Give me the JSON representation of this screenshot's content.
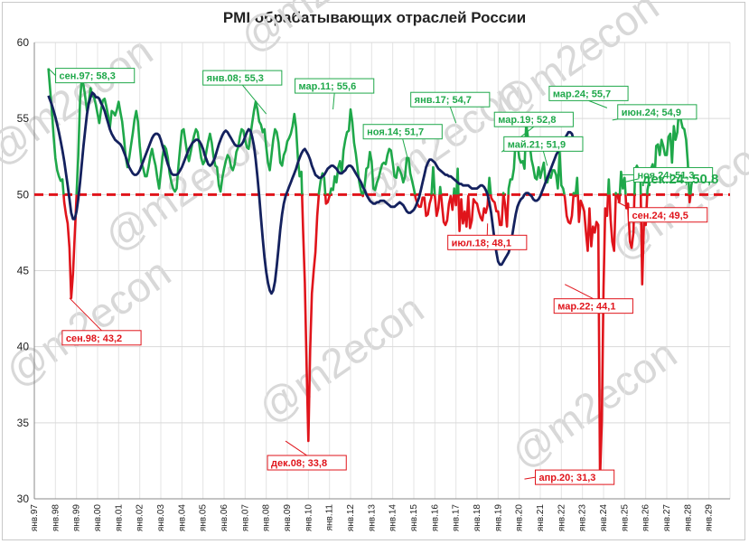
{
  "chart_data": {
    "type": "line",
    "title": "PMI обрабатывающих отраслей России",
    "watermark": "@m2econ",
    "xlim": [
      "янв.97",
      "янв.30"
    ],
    "ylim": [
      30,
      60
    ],
    "y_ticks": [
      30,
      35,
      40,
      45,
      50,
      55,
      60
    ],
    "x_tick_labels": [
      "янв.97",
      "янв.98",
      "янв.99",
      "янв.00",
      "янв.01",
      "янв.02",
      "янв.03",
      "янв.04",
      "янв.05",
      "янв.06",
      "янв.07",
      "янв.08",
      "янв.09",
      "янв.10",
      "янв.11",
      "янв.12",
      "янв.13",
      "янв.14",
      "янв.15",
      "янв.16",
      "янв.17",
      "янв.18",
      "янв.19",
      "янв.20",
      "янв.21",
      "янв.22",
      "янв.23",
      "янв.24",
      "янв.25",
      "янв.26",
      "янв.27",
      "янв.28",
      "янв.29"
    ],
    "threshold": 50,
    "colors": {
      "above": "#1fa84a",
      "below": "#e0141b",
      "trend": "#14215e",
      "threshold": "#e0141b"
    },
    "series": [
      {
        "kind": "monthly",
        "x_start": "сен.97",
        "values": [
          58.3,
          56.9,
          55.5,
          53.8,
          52.4,
          51.6,
          51.2,
          50.9,
          51.0,
          49.5,
          48.7,
          48.1,
          46.5,
          43.2,
          44.8,
          47.3,
          49.9,
          52.5,
          56.2,
          57.6,
          57.2,
          56.4,
          55.5,
          56.1,
          57.0,
          56.5,
          56.4,
          55.9,
          55.3,
          54.7,
          55.6,
          56.2,
          56.3,
          55.8,
          55.2,
          54.4,
          55.5,
          55.4,
          55.2,
          55.6,
          56.1,
          55.4,
          54.8,
          53.7,
          52.5,
          51.8,
          52.4,
          53.2,
          54.0,
          54.9,
          55.5,
          54.8,
          53.2,
          52.1,
          51.7,
          51.2,
          51.2,
          51.8,
          52.5,
          53.0,
          52.4,
          51.9,
          51.1,
          50.4,
          51.4,
          52.5,
          53.2,
          53.0,
          52.4,
          51.4,
          50.8,
          50.4,
          50.2,
          50.4,
          51.8,
          53.1,
          54.2,
          54.3,
          53.5,
          52.7,
          52.2,
          52.8,
          53.4,
          53.9,
          54.3,
          54.1,
          53.2,
          52.4,
          52.0,
          52.2,
          52.9,
          53.5,
          54.0,
          53.4,
          52.5,
          51.9,
          51.8,
          50.6,
          50.2,
          51.1,
          51.7,
          52.2,
          52.6,
          52.4,
          51.8,
          51.6,
          52.0,
          52.8,
          53.1,
          53.8,
          54.3,
          54.2,
          53.6,
          53.1,
          53.0,
          53.9,
          54.7,
          55.5,
          56.1,
          55.6,
          54.8,
          54.6,
          54.1,
          54.3,
          53.1,
          52.1,
          51.6,
          52.6,
          53.6,
          54.3,
          54.1,
          53.4,
          52.1,
          51.9,
          52.6,
          52.9,
          53.5,
          53.7,
          54.0,
          54.5,
          55.3,
          54.4,
          52.4,
          51.2,
          51.5,
          47.6,
          44.2,
          38.6,
          33.8,
          39.8,
          43.5,
          45.0,
          46.2,
          48.6,
          50.1,
          50.9,
          51.4,
          51.1,
          49.4,
          49.5,
          49.9,
          50.4,
          50.3,
          51.2,
          50.8,
          51.8,
          52.2,
          51.4,
          52.9,
          53.6,
          54.1,
          54.2,
          55.6,
          54.8,
          53.4,
          52.7,
          51.7,
          50.8,
          50.2,
          49.9,
          50.6,
          51.7,
          51.8,
          52.8,
          52.2,
          50.4,
          50.3,
          50.8,
          51.1,
          51.6,
          52.0,
          52.1,
          52.0,
          52.6,
          53.0,
          52.9,
          52.1,
          51.2,
          51.1,
          51.8,
          51.6,
          51.3,
          50.8,
          51.2,
          52.4,
          52.4,
          51.4,
          50.9,
          50.4,
          49.8,
          49.4,
          49.2,
          49.2,
          49.8,
          49.8,
          48.6,
          48.7,
          49.4,
          49.8,
          51.8,
          49.9,
          48.6,
          49.1,
          50.5,
          49.4,
          48.2,
          48.0,
          48.3,
          49.4,
          49.9,
          49.0,
          50.4,
          49.3,
          51.7,
          47.6,
          49.7,
          48.1,
          48.9,
          47.9,
          49.9,
          47.8,
          48.3,
          49.7,
          49.5,
          49.4,
          48.9,
          48.5,
          48.3,
          49.1,
          48.8,
          49.3,
          51.1,
          49.8,
          49.6,
          49.5,
          48.9,
          48.9,
          48.0,
          48.0,
          50.1,
          49.3,
          47.9,
          50.4,
          51.0,
          51.0,
          51.7,
          53.7,
          53.4,
          52.4,
          52.1,
          52.2,
          51.7,
          54.7,
          53.7,
          53.3,
          52.3,
          51.8,
          51.1,
          51.0,
          51.8,
          51.1,
          51.6,
          52.1,
          50.9,
          50.8,
          51.3,
          51.1,
          51.6,
          51.6,
          51.3,
          50.4,
          52.8,
          50.6,
          50.4,
          49.8,
          48.6,
          48.2,
          48.1,
          48.6,
          50.1,
          49.9,
          51.1,
          48.2,
          49.6,
          49.3,
          48.9,
          47.5,
          46.3,
          49.1,
          46.6,
          47.9,
          47.5,
          48.2,
          48.0,
          31.3,
          35.1,
          43.9,
          49.1,
          48.6,
          51.0,
          48.4,
          46.9,
          46.3,
          50.1,
          49.9,
          49.5,
          51.5,
          50.4,
          51.1,
          49.1,
          49.4,
          46.9,
          46.5,
          47.5,
          51.6,
          51.9,
          51.6,
          51.3,
          44.1,
          48.2,
          48.0,
          50.3,
          50.9,
          51.7,
          52.0,
          50.9,
          53.2,
          53.3,
          52.6,
          53.6,
          53.2,
          52.6,
          52.6,
          53.8,
          54.0,
          52.1,
          54.5,
          53.6,
          54.1,
          55.7,
          54.9,
          54.4,
          54.3,
          53.6,
          52.1,
          49.5,
          50.6,
          51.3,
          51.0,
          50.8
        ]
      },
      {
        "kind": "trend",
        "x_start": "сен.97",
        "values": [
          56.5,
          56.2,
          55.9,
          55.5,
          55.1,
          54.6,
          54.1,
          53.5,
          52.9,
          52.2,
          51.4,
          50.6,
          49.7,
          48.8,
          48.4,
          48.4,
          48.9,
          49.7,
          50.8,
          52.0,
          53.2,
          54.3,
          55.3,
          56.0,
          56.4,
          56.7,
          56.6,
          56.4,
          56.4,
          56.3,
          56.0,
          55.8,
          55.5,
          55.1,
          54.7,
          54.3,
          54.0,
          53.8,
          53.6,
          53.5,
          53.4,
          53.3,
          53.1,
          52.8,
          52.5,
          52.1,
          51.8,
          51.6,
          51.4,
          51.3,
          51.3,
          51.4,
          51.6,
          51.9,
          52.2,
          52.5,
          52.8,
          53.1,
          53.4,
          53.7,
          53.9,
          54.0,
          54.0,
          53.9,
          53.6,
          53.2,
          52.8,
          52.4,
          52.0,
          51.7,
          51.4,
          51.3,
          51.3,
          51.3,
          51.4,
          51.6,
          51.8,
          52.1,
          52.4,
          52.7,
          53.0,
          53.2,
          53.4,
          53.5,
          53.6,
          53.6,
          53.5,
          53.3,
          53.0,
          52.6,
          52.3,
          52.0,
          51.9,
          52.0,
          52.2,
          52.5,
          52.9,
          53.3,
          53.6,
          53.9,
          54.1,
          54.2,
          54.1,
          53.9,
          53.7,
          53.5,
          53.3,
          53.2,
          53.2,
          53.2,
          53.3,
          53.5,
          53.8,
          54.1,
          54.3,
          54.2,
          53.8,
          53.2,
          52.3,
          51.2,
          49.9,
          48.5,
          47.1,
          45.9,
          44.9,
          44.2,
          43.7,
          43.5,
          43.7,
          44.3,
          45.3,
          46.5,
          47.7,
          48.7,
          49.4,
          49.9,
          50.2,
          50.5,
          50.8,
          51.1,
          51.4,
          51.7,
          52.1,
          52.4,
          52.7,
          52.9,
          53.0,
          52.8,
          52.6,
          52.3,
          51.9,
          51.6,
          51.3,
          51.2,
          51.1,
          51.1,
          51.2,
          51.3,
          51.5,
          51.7,
          51.8,
          51.9,
          51.9,
          51.8,
          51.7,
          51.5,
          51.4,
          51.4,
          51.5,
          51.6,
          51.8,
          51.9,
          51.9,
          51.8,
          51.6,
          51.4,
          51.2,
          51.0,
          50.8,
          50.5,
          50.3,
          50.0,
          49.8,
          49.6,
          49.5,
          49.4,
          49.4,
          49.5,
          49.5,
          49.6,
          49.6,
          49.6,
          49.5,
          49.4,
          49.3,
          49.2,
          49.2,
          49.2,
          49.3,
          49.4,
          49.5,
          49.4,
          49.3,
          49.1,
          48.9,
          48.8,
          48.8,
          48.9,
          49.0,
          49.2,
          49.5,
          49.8,
          50.3,
          50.8,
          51.3,
          51.8,
          52.1,
          52.3,
          52.3,
          52.2,
          52.1,
          51.9,
          51.7,
          51.6,
          51.5,
          51.4,
          51.3,
          51.3,
          51.2,
          51.2,
          51.1,
          51.0,
          50.9,
          50.8,
          50.7,
          50.7,
          50.6,
          50.6,
          50.6,
          50.6,
          50.5,
          50.4,
          50.4,
          50.4,
          50.4,
          50.5,
          50.6,
          50.6,
          50.5,
          50.3,
          50.0,
          49.5,
          48.8,
          47.9,
          47.0,
          46.2,
          45.6,
          45.4,
          45.4,
          45.6,
          45.8,
          46.0,
          46.2,
          46.6,
          47.3,
          48.0,
          48.7,
          49.2,
          49.5,
          49.7,
          49.8,
          50.0,
          50.1,
          50.1,
          50.0,
          49.9,
          49.7,
          49.6,
          49.6,
          49.7,
          49.9,
          50.2,
          50.5,
          50.8,
          51.1,
          51.4,
          51.7,
          52.0,
          52.3,
          52.6,
          52.8,
          53.1,
          53.3,
          53.5,
          53.7,
          53.9,
          54.1,
          54.1,
          54.0,
          53.6,
          53.2,
          52.9
        ]
      }
    ],
    "annotations": [
      {
        "label": "сен.97; 58,3",
        "at": "сен.97",
        "value": 58.3,
        "color": "green"
      },
      {
        "label": "сен.98; 43,2",
        "at": "сен.98",
        "value": 43.2,
        "color": "red"
      },
      {
        "label": "янв.08; 55,3",
        "at": "янв.08",
        "value": 55.3,
        "color": "green"
      },
      {
        "label": "дек.08; 33,8",
        "at": "дек.08",
        "value": 33.8,
        "color": "red"
      },
      {
        "label": "мар.11; 55,6",
        "at": "мар.11",
        "value": 55.6,
        "color": "green"
      },
      {
        "label": "ноя.14; 51,7",
        "at": "ноя.14",
        "value": 51.7,
        "color": "green"
      },
      {
        "label": "янв.17; 54,7",
        "at": "янв.17",
        "value": 54.7,
        "color": "green"
      },
      {
        "label": "мар.19; 52,8",
        "at": "мар.19",
        "value": 52.8,
        "color": "green"
      },
      {
        "label": "июл.18; 48,1",
        "at": "июл.18",
        "value": 48.1,
        "color": "red"
      },
      {
        "label": "май.21; 51,9",
        "at": "май.21",
        "value": 51.9,
        "color": "green"
      },
      {
        "label": "апр.20; 31,3",
        "at": "апр.20",
        "value": 31.3,
        "color": "red"
      },
      {
        "label": "мар.22; 44,1",
        "at": "мар.22",
        "value": 44.1,
        "color": "red"
      },
      {
        "label": "мар.24; 55,7",
        "at": "мар.24",
        "value": 55.7,
        "color": "green"
      },
      {
        "label": "июн.24; 54,9",
        "at": "июн.24",
        "value": 54.9,
        "color": "green"
      },
      {
        "label": "ноя.24; 51,3",
        "at": "ноя.24",
        "value": 51.3,
        "color": "green"
      },
      {
        "label": "сен.24; 49,5",
        "at": "сен.24",
        "value": 49.5,
        "color": "red"
      },
      {
        "label": "дек.24; 50,8",
        "at": "дек.24",
        "value": 50.8,
        "color": "green",
        "emphasis": true
      }
    ]
  }
}
